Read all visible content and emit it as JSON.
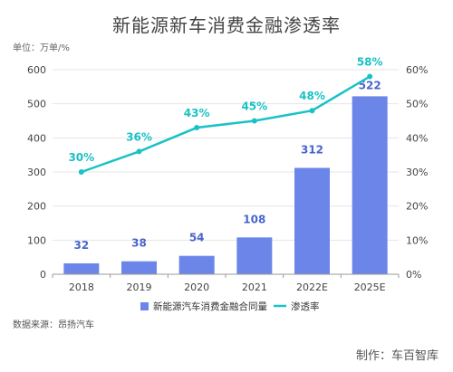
{
  "page": {
    "title": "新能源新车消费金融渗透率",
    "unit": "单位：万单/%",
    "source": "数据来源：昂扬汽车",
    "maker": "制作：车百智库"
  },
  "colors": {
    "bar": "#6b86e8",
    "bar_label": "#4a64cc",
    "line": "#19c2c6",
    "axis": "#999999",
    "grid": "#e6e6e6"
  },
  "chart_data": {
    "type": "bar",
    "categories": [
      "2018",
      "2019",
      "2020",
      "2021",
      "2022E",
      "2025E"
    ],
    "series": [
      {
        "name": "新能源汽车消费金融合同量",
        "type": "bar",
        "axis": "left",
        "values": [
          32,
          38,
          54,
          108,
          312,
          522
        ],
        "labels": [
          "32",
          "38",
          "54",
          "108",
          "312",
          "522"
        ]
      },
      {
        "name": "渗透率",
        "type": "line",
        "axis": "right",
        "values": [
          30,
          36,
          43,
          45,
          48,
          58
        ],
        "labels": [
          "30%",
          "36%",
          "43%",
          "45%",
          "48%",
          "58%"
        ]
      }
    ],
    "ylim_left": [
      0,
      600
    ],
    "ylim_right": [
      0,
      60
    ],
    "yticks_left": [
      "0",
      "100",
      "200",
      "300",
      "400",
      "500",
      "600"
    ],
    "yticks_right": [
      "0%",
      "10%",
      "20%",
      "30%",
      "40%",
      "50%",
      "60%"
    ],
    "grid": true,
    "legend": "bottom"
  }
}
